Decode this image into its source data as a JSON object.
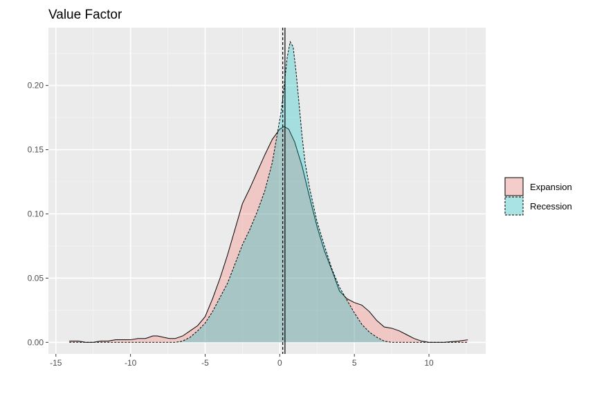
{
  "chart_data": {
    "type": "area",
    "title": "Value Factor",
    "xlabel": "",
    "ylabel": "",
    "xlim": [
      -15.5,
      13.8
    ],
    "ylim": [
      -0.009,
      0.245
    ],
    "x_ticks": [
      -15,
      -10,
      -5,
      0,
      5,
      10
    ],
    "y_ticks": [
      0.0,
      0.05,
      0.1,
      0.15,
      0.2
    ],
    "x_tick_labels": [
      "-15",
      "-10",
      "-5",
      "0",
      "5",
      "10"
    ],
    "y_tick_labels": [
      "0.00",
      "0.05",
      "0.10",
      "0.15",
      "0.20"
    ],
    "grid": true,
    "legend_position": "right",
    "series": [
      {
        "name": "Expansion",
        "fill": "#f8766d",
        "fill_opacity": 0.3,
        "line_style": "solid",
        "mean_line": 0.35,
        "x": [
          -14.1,
          -13.5,
          -13,
          -12.5,
          -12,
          -11.5,
          -11,
          -10.5,
          -10,
          -9.5,
          -9,
          -8.5,
          -8.2,
          -7.8,
          -7.4,
          -7,
          -6.5,
          -6,
          -5.5,
          -5,
          -4.5,
          -4,
          -3.5,
          -3,
          -2.5,
          -2,
          -1.5,
          -1,
          -0.5,
          0,
          0.3,
          0.6,
          1,
          1.5,
          2,
          2.5,
          3,
          3.5,
          4,
          4.5,
          5,
          5.5,
          6,
          6.5,
          7,
          7.5,
          8,
          8.5,
          9,
          9.5,
          10,
          11,
          12,
          12.6
        ],
        "y": [
          0.001,
          0.001,
          0.0,
          0.0,
          0.001,
          0.001,
          0.002,
          0.002,
          0.002,
          0.003,
          0.003,
          0.005,
          0.005,
          0.004,
          0.003,
          0.003,
          0.005,
          0.009,
          0.013,
          0.02,
          0.034,
          0.05,
          0.068,
          0.088,
          0.108,
          0.12,
          0.133,
          0.146,
          0.158,
          0.166,
          0.168,
          0.166,
          0.156,
          0.137,
          0.113,
          0.09,
          0.071,
          0.056,
          0.04,
          0.034,
          0.031,
          0.029,
          0.024,
          0.017,
          0.012,
          0.011,
          0.009,
          0.006,
          0.003,
          0.001,
          0.0,
          0.0,
          0.001,
          0.002
        ]
      },
      {
        "name": "Recession",
        "fill": "#00bfc4",
        "fill_opacity": 0.3,
        "line_style": "dashed",
        "mean_line": 0.2,
        "x": [
          -14.1,
          -13,
          -12,
          -11,
          -10,
          -9,
          -8,
          -7,
          -6.5,
          -6,
          -5.5,
          -5,
          -4.5,
          -4,
          -3.5,
          -3,
          -2.5,
          -2,
          -1.5,
          -1,
          -0.5,
          -0.2,
          0.1,
          0.3,
          0.5,
          0.7,
          0.9,
          1.1,
          1.3,
          1.5,
          1.7,
          2,
          2.5,
          3,
          3.5,
          4,
          4.5,
          5,
          5.5,
          6,
          6.5,
          7,
          7.5,
          8,
          8.5,
          9,
          10,
          11,
          12,
          12.6
        ],
        "y": [
          0.0,
          0.0,
          0.0,
          0.0,
          0.0,
          0.0,
          0.0,
          0.0,
          0.001,
          0.004,
          0.009,
          0.015,
          0.024,
          0.035,
          0.046,
          0.061,
          0.076,
          0.088,
          0.102,
          0.118,
          0.14,
          0.16,
          0.18,
          0.2,
          0.222,
          0.234,
          0.23,
          0.21,
          0.185,
          0.16,
          0.14,
          0.12,
          0.094,
          0.075,
          0.057,
          0.043,
          0.033,
          0.023,
          0.014,
          0.008,
          0.004,
          0.001,
          0.0,
          0.0,
          0.0,
          0.0,
          0.0,
          0.0,
          0.0,
          0.0
        ]
      }
    ]
  }
}
